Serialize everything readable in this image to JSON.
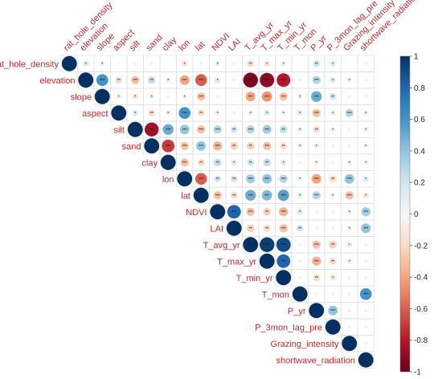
{
  "chart_data": {
    "type": "heatmap",
    "variables": [
      "rat_hole_density",
      "elevation",
      "slope",
      "aspect",
      "silt",
      "sand",
      "clay",
      "lon",
      "lat",
      "NDVI",
      "LAI",
      "T_avg_yr",
      "T_max_yr",
      "T_min_yr",
      "T_mon",
      "P_yr",
      "P_3mon_lag_pre",
      "Grazing_intensity",
      "shortwave_radiation"
    ],
    "layout": "upper-triangle correlation circles",
    "colorbar": {
      "ticks": [
        "1",
        "0.8",
        "0.6",
        "0.4",
        "0.2",
        "0",
        "-0.2",
        "-0.4",
        "-0.6",
        "-0.8",
        "-1"
      ],
      "range": [
        -1,
        1
      ],
      "color_high": "#053061",
      "color_mid": "#f7f7f7",
      "color_low": "#67001f"
    },
    "significance_marks": "asterisks",
    "matrix": [
      [
        1,
        0.15,
        0.1,
        0.02,
        -0.05,
        0.05,
        0,
        -0.15,
        0.05,
        0.1,
        0.05,
        -0.2,
        -0.15,
        -0.1,
        0,
        0.2,
        0.15,
        0,
        0.05
      ],
      [
        0.15,
        1,
        0.6,
        -0.2,
        -0.3,
        0.25,
        0.1,
        -0.4,
        -0.6,
        0.15,
        0.05,
        -0.95,
        -0.9,
        -0.8,
        -0.05,
        0.3,
        0.15,
        0.1,
        0.05
      ],
      [
        0.1,
        0.6,
        1,
        -0.1,
        -0.15,
        0.1,
        0.05,
        -0.1,
        -0.3,
        0.05,
        0.02,
        -0.4,
        -0.45,
        -0.3,
        -0.1,
        0.5,
        0.2,
        0.05,
        0.05
      ],
      [
        0.02,
        -0.2,
        -0.1,
        1,
        0.15,
        -0.2,
        -0.1,
        0.6,
        -0.2,
        0.1,
        0.05,
        0.1,
        0.15,
        0.1,
        0.15,
        -0.3,
        -0.1,
        0.3,
        0.1
      ],
      [
        -0.05,
        -0.3,
        -0.15,
        0.15,
        1,
        -0.85,
        0.5,
        0.4,
        -0.3,
        0.3,
        0.2,
        0.3,
        0.35,
        0.25,
        0.1,
        -0.2,
        -0.1,
        0.05,
        0.1
      ],
      [
        0.05,
        0.25,
        0.1,
        -0.2,
        -0.85,
        1,
        -0.7,
        -0.3,
        0.4,
        -0.35,
        -0.25,
        -0.25,
        -0.3,
        -0.2,
        -0.1,
        0.1,
        0.05,
        -0.05,
        -0.1
      ],
      [
        0,
        0.1,
        0.05,
        -0.1,
        0.5,
        -0.7,
        1,
        -0.3,
        -0.2,
        0.25,
        0.15,
        0.2,
        0.25,
        0.15,
        0.05,
        -0.1,
        -0.05,
        0.1,
        0.1
      ],
      [
        -0.15,
        -0.4,
        -0.1,
        0.6,
        0.4,
        -0.3,
        -0.3,
        1,
        -0.6,
        0.2,
        0.2,
        0.35,
        0.4,
        0.3,
        0.1,
        -0.4,
        -0.2,
        0.4,
        0.15
      ],
      [
        0.05,
        -0.6,
        -0.3,
        -0.2,
        -0.3,
        0.4,
        -0.2,
        -0.6,
        1,
        -0.3,
        -0.2,
        0.5,
        0.45,
        0.55,
        0.1,
        0.3,
        0.1,
        -0.3,
        -0.15
      ],
      [
        0.1,
        0.15,
        0.05,
        0.1,
        0.3,
        -0.35,
        0.25,
        0.2,
        -0.3,
        1,
        0.8,
        -0.3,
        -0.25,
        -0.35,
        0.15,
        0.05,
        0.05,
        0.1,
        0.35
      ],
      [
        0.05,
        0.05,
        0.02,
        0.05,
        0.2,
        -0.25,
        0.15,
        0.2,
        -0.2,
        0.8,
        1,
        -0.25,
        -0.2,
        -0.3,
        0.2,
        0.05,
        0.05,
        0.1,
        0.4
      ],
      [
        -0.2,
        -0.95,
        -0.4,
        0.1,
        0.3,
        -0.25,
        0.2,
        0.35,
        0.5,
        -0.3,
        -0.25,
        1,
        0.95,
        0.9,
        0.05,
        -0.3,
        -0.25,
        -0.1,
        -0.05
      ],
      [
        -0.15,
        -0.9,
        -0.45,
        0.15,
        0.35,
        -0.3,
        0.25,
        0.4,
        0.45,
        -0.25,
        -0.2,
        0.95,
        1,
        0.8,
        0.05,
        -0.35,
        -0.2,
        -0.1,
        -0.05
      ],
      [
        -0.1,
        -0.8,
        -0.3,
        0.1,
        0.25,
        -0.2,
        0.15,
        0.3,
        0.55,
        -0.35,
        -0.3,
        0.9,
        0.8,
        1,
        0.05,
        -0.2,
        -0.15,
        -0.05,
        -0.05
      ],
      [
        0,
        -0.05,
        -0.1,
        0.15,
        0.1,
        -0.1,
        0.05,
        0.1,
        0.1,
        0.15,
        0.2,
        0.05,
        0.05,
        0.05,
        1,
        -0.05,
        0.05,
        0.05,
        0.6
      ],
      [
        0.2,
        0.3,
        0.5,
        -0.3,
        -0.2,
        0.1,
        -0.1,
        -0.4,
        0.3,
        0.05,
        0.05,
        -0.3,
        -0.35,
        -0.2,
        -0.05,
        1,
        0.4,
        0.05,
        0.05
      ],
      [
        0.15,
        0.15,
        0.2,
        -0.1,
        -0.1,
        0.05,
        -0.05,
        -0.2,
        0.1,
        0.05,
        0.05,
        -0.25,
        -0.2,
        -0.15,
        0.05,
        0.4,
        1,
        0.05,
        0.05
      ],
      [
        0,
        0.1,
        0.05,
        0.3,
        0.05,
        -0.05,
        0.1,
        0.4,
        -0.3,
        0.1,
        0.1,
        -0.1,
        -0.1,
        -0.05,
        0.05,
        0.05,
        0.05,
        1,
        0.05
      ],
      [
        0.05,
        0.05,
        0.05,
        0.1,
        0.1,
        -0.1,
        0.1,
        0.15,
        -0.15,
        0.35,
        0.4,
        -0.05,
        -0.05,
        -0.05,
        0.6,
        0.05,
        0.05,
        0.05,
        1
      ]
    ]
  }
}
